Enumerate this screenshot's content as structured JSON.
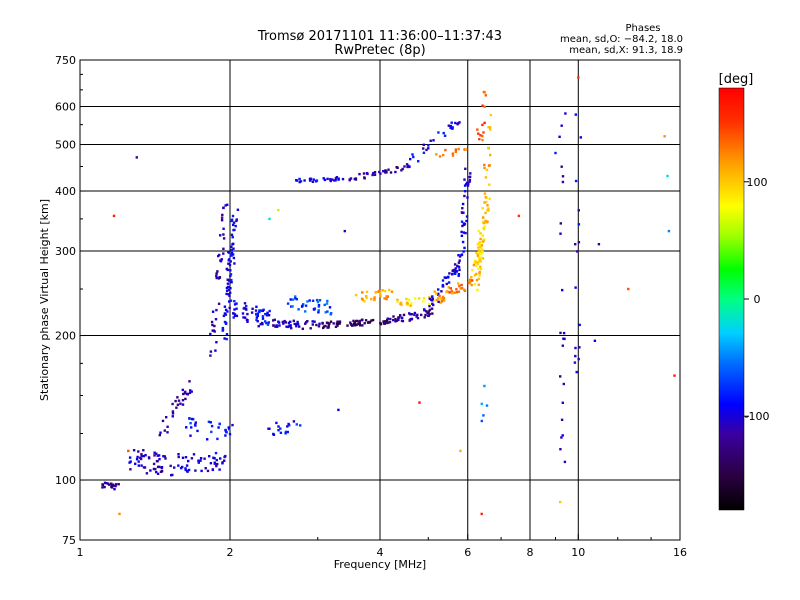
{
  "chart_data": {
    "type": "scatter",
    "title": "Tromsø 20171101 11:36:00–11:37:43",
    "subtitle": "RwPretec (8p)",
    "xlabel": "Frequency [MHz]",
    "ylabel": "Stationary phase Virtual Height [km]",
    "x_scale": "log",
    "y_scale": "log",
    "xlim": [
      1,
      16
    ],
    "ylim": [
      75,
      750
    ],
    "x_ticks": [
      1,
      2,
      4,
      6,
      8,
      10,
      16
    ],
    "x_tick_labels": [
      "1",
      "2",
      "4",
      "6",
      "8",
      "10",
      "16"
    ],
    "y_ticks": [
      75,
      100,
      200,
      300,
      400,
      500,
      600,
      750
    ],
    "y_tick_labels": [
      "75",
      "100",
      "200",
      "300",
      "400",
      "500",
      "600",
      "750"
    ],
    "x_gridlines": [
      2,
      4,
      6,
      8,
      10
    ],
    "y_gridlines": [
      100,
      200,
      300,
      400,
      500,
      600
    ],
    "grid": true,
    "colorbar": {
      "label": "[deg]",
      "range": [
        -180,
        180
      ],
      "ticks": [
        100,
        0,
        -100
      ],
      "tick_labels": [
        "100",
        "0",
        "-100"
      ]
    },
    "stats": {
      "heading": "Phases",
      "line1": "mean, sd,O: −84.2, 18.0",
      "line2": "mean, sd,X:  91.3, 18.9"
    },
    "traces": [
      {
        "kind": "band",
        "from": [
          1.1,
          97
        ],
        "to": [
          1.2,
          97
        ],
        "spread": 2,
        "phase": -120,
        "count": 18
      },
      {
        "kind": "band",
        "from": [
          1.25,
          110
        ],
        "to": [
          1.55,
          108
        ],
        "spread": 6,
        "phase": -110,
        "count": 50
      },
      {
        "kind": "band",
        "from": [
          1.55,
          108
        ],
        "to": [
          1.95,
          110
        ],
        "spread": 5,
        "phase": -100,
        "count": 45
      },
      {
        "kind": "band",
        "from": [
          1.45,
          125
        ],
        "to": [
          1.7,
          160
        ],
        "spread": 5,
        "phase": -115,
        "count": 30
      },
      {
        "kind": "band",
        "from": [
          1.6,
          130
        ],
        "to": [
          2.0,
          125
        ],
        "spread": 6,
        "phase": -85,
        "count": 30
      },
      {
        "kind": "band",
        "from": [
          2.4,
          128
        ],
        "to": [
          2.8,
          130
        ],
        "spread": 4,
        "phase": -85,
        "count": 18
      },
      {
        "kind": "band",
        "from": [
          1.85,
          190
        ],
        "to": [
          1.95,
          380
        ],
        "spread": 12,
        "phase": -110,
        "count": 40
      },
      {
        "kind": "band",
        "from": [
          1.95,
          200
        ],
        "to": [
          2.05,
          360
        ],
        "spread": 15,
        "phase": -95,
        "count": 70
      },
      {
        "kind": "band",
        "from": [
          2.0,
          230
        ],
        "to": [
          2.4,
          215
        ],
        "spread": 10,
        "phase": -90,
        "count": 55
      },
      {
        "kind": "band",
        "from": [
          2.4,
          212
        ],
        "to": [
          3.0,
          210
        ],
        "spread": 4,
        "phase": -105,
        "count": 40
      },
      {
        "kind": "band",
        "from": [
          2.6,
          235
        ],
        "to": [
          3.2,
          228
        ],
        "spread": 8,
        "phase": -70,
        "count": 35
      },
      {
        "kind": "band",
        "from": [
          3.0,
          210
        ],
        "to": [
          4.2,
          215
        ],
        "spread": 3,
        "phase": -140,
        "count": 70
      },
      {
        "kind": "band",
        "from": [
          4.2,
          215
        ],
        "to": [
          5.2,
          225
        ],
        "spread": 4,
        "phase": -120,
        "count": 45
      },
      {
        "kind": "band",
        "from": [
          3.6,
          240
        ],
        "to": [
          4.2,
          245
        ],
        "spread": 6,
        "phase": 115,
        "count": 28
      },
      {
        "kind": "band",
        "from": [
          4.3,
          232
        ],
        "to": [
          5.4,
          238
        ],
        "spread": 5,
        "phase": 95,
        "count": 30
      },
      {
        "kind": "band",
        "from": [
          5.0,
          230
        ],
        "to": [
          5.8,
          280
        ],
        "spread": 8,
        "phase": -100,
        "count": 45
      },
      {
        "kind": "band",
        "from": [
          5.8,
          280
        ],
        "to": [
          6.0,
          440
        ],
        "spread": 12,
        "phase": -100,
        "count": 40
      },
      {
        "kind": "band",
        "from": [
          5.2,
          240
        ],
        "to": [
          6.2,
          260
        ],
        "spread": 7,
        "phase": 125,
        "count": 35
      },
      {
        "kind": "band",
        "from": [
          6.2,
          260
        ],
        "to": [
          6.55,
          370
        ],
        "spread": 15,
        "phase": 100,
        "count": 70
      },
      {
        "kind": "band",
        "from": [
          6.55,
          370
        ],
        "to": [
          6.6,
          580
        ],
        "spread": 30,
        "phase": 110,
        "count": 20
      },
      {
        "kind": "band",
        "from": [
          2.7,
          420
        ],
        "to": [
          3.5,
          425
        ],
        "spread": 4,
        "phase": -95,
        "count": 30
      },
      {
        "kind": "band",
        "from": [
          3.5,
          425
        ],
        "to": [
          4.6,
          450
        ],
        "spread": 5,
        "phase": -120,
        "count": 35
      },
      {
        "kind": "band",
        "from": [
          4.6,
          460
        ],
        "to": [
          5.8,
          560
        ],
        "spread": 12,
        "phase": -95,
        "count": 25
      },
      {
        "kind": "band",
        "from": [
          5.2,
          475
        ],
        "to": [
          6.0,
          490
        ],
        "spread": 8,
        "phase": 120,
        "count": 12
      },
      {
        "kind": "band",
        "from": [
          6.3,
          520
        ],
        "to": [
          6.6,
          650
        ],
        "spread": 30,
        "phase": 140,
        "count": 14
      },
      {
        "kind": "band",
        "from": [
          9.3,
          95
        ],
        "to": [
          9.3,
          610
        ],
        "spread": 10,
        "phase": -110,
        "count": 22
      },
      {
        "kind": "band",
        "from": [
          9.95,
          160
        ],
        "to": [
          10.0,
          600
        ],
        "spread": 10,
        "phase": -100,
        "count": 16
      },
      {
        "kind": "band",
        "from": [
          6.5,
          135
        ],
        "to": [
          6.5,
          185
        ],
        "spread": 10,
        "phase": -60,
        "count": 5
      }
    ],
    "isolated_points": [
      [
        1.3,
        470,
        -120
      ],
      [
        1.17,
        355,
        160
      ],
      [
        1.25,
        115,
        140
      ],
      [
        1.2,
        85,
        120
      ],
      [
        2.5,
        365,
        60
      ],
      [
        2.4,
        350,
        -20
      ],
      [
        3.3,
        140,
        -90
      ],
      [
        3.4,
        330,
        -100
      ],
      [
        4.8,
        145,
        170
      ],
      [
        5.8,
        115,
        110
      ],
      [
        6.4,
        85,
        155
      ],
      [
        7.6,
        355,
        150
      ],
      [
        9.2,
        90,
        100
      ],
      [
        10.0,
        690,
        150
      ],
      [
        11.0,
        310,
        -110
      ],
      [
        10.8,
        195,
        -90
      ],
      [
        12.6,
        250,
        140
      ],
      [
        14.9,
        520,
        120
      ],
      [
        15.2,
        330,
        -50
      ],
      [
        15.1,
        430,
        -30
      ],
      [
        15.6,
        165,
        160
      ],
      [
        9.0,
        480,
        -80
      ]
    ]
  }
}
